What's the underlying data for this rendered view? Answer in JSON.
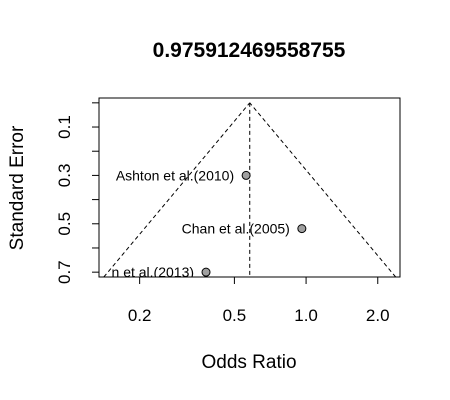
{
  "chart_data": {
    "type": "scatter",
    "title": "0.975912469558755",
    "xlabel": "Odds Ratio",
    "ylabel": "Standard Error",
    "x_scale": "log",
    "x_ticks": [
      0.2,
      0.5,
      1.0,
      2.0
    ],
    "x_tick_labels": [
      "0.2",
      "0.5",
      "1.0",
      "2.0"
    ],
    "y_ticks": [
      0.1,
      0.3,
      0.5,
      0.7
    ],
    "y_tick_labels": [
      "0.1",
      "0.3",
      "0.5",
      "0.7"
    ],
    "y_minor_ticks": [
      0.0,
      0.2,
      0.4,
      0.6
    ],
    "xlim": [
      0.135,
      2.48
    ],
    "ylim": [
      0.72,
      -0.02
    ],
    "y_reversed": true,
    "pooled_estimate": 0.58,
    "funnel_se_max": 0.72,
    "points": [
      {
        "label": "Ashton et al.(2010)",
        "x": 0.56,
        "y": 0.3
      },
      {
        "label": "Chan et al.(2005)",
        "x": 0.96,
        "y": 0.52
      },
      {
        "label": "n et al.(2013)",
        "x": 0.38,
        "y": 0.7
      }
    ],
    "point_color": "#a0a0a0",
    "grid": false
  }
}
